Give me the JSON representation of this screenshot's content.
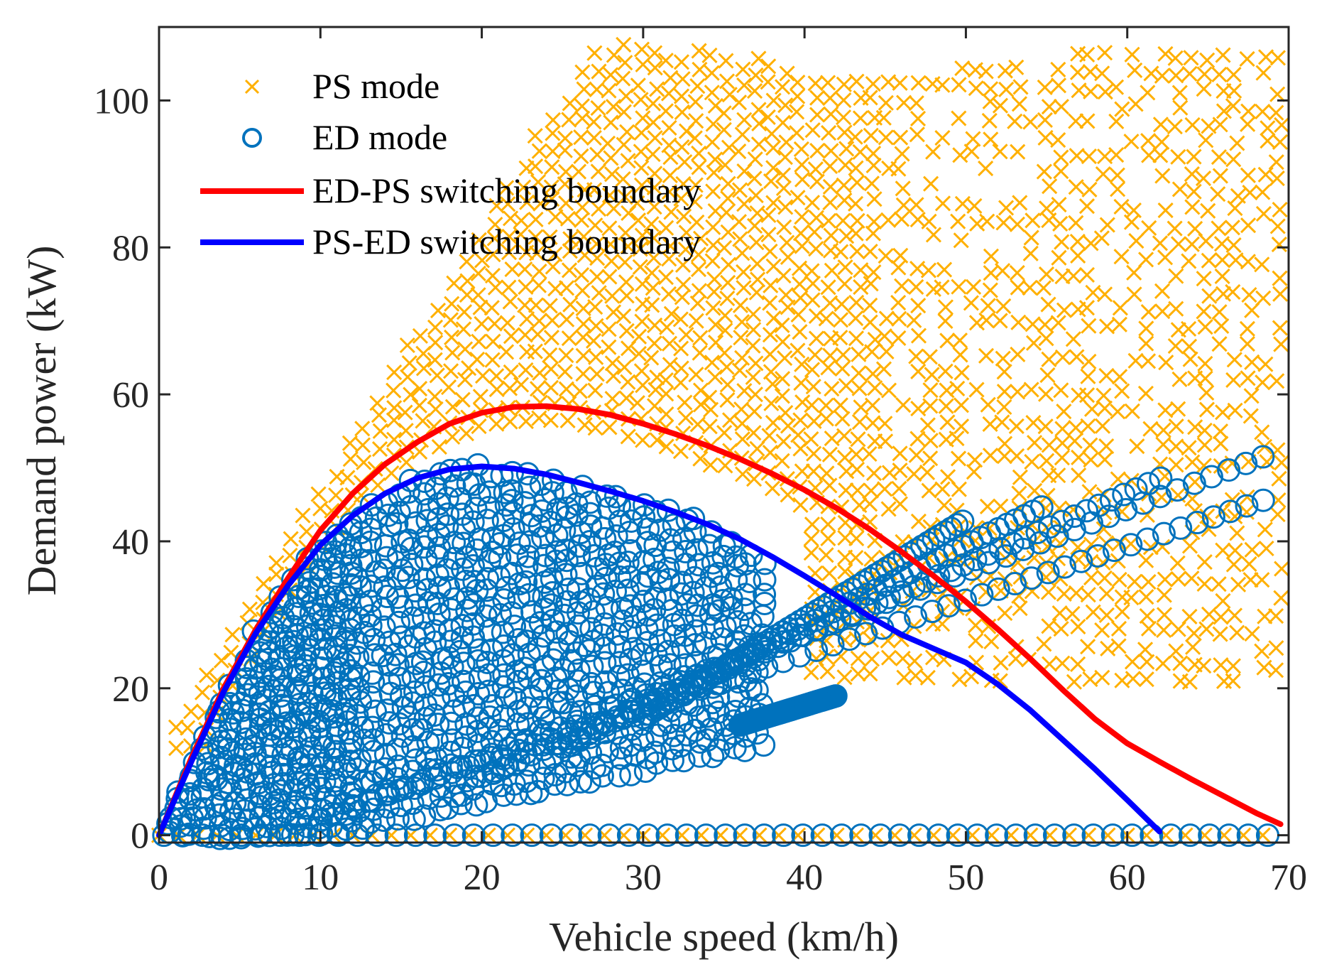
{
  "chart_data": {
    "type": "scatter",
    "xlabel": "Vehicle speed (km/h)",
    "ylabel": "Demand power (kW)",
    "xlim": [
      0,
      70
    ],
    "ylim": [
      -1,
      110
    ],
    "x_ticks": [
      0,
      10,
      20,
      30,
      40,
      50,
      60,
      70
    ],
    "y_ticks": [
      0,
      20,
      40,
      60,
      80,
      100
    ],
    "grid": false,
    "legend_position": "top-left",
    "series": [
      {
        "name": "PS mode",
        "kind": "scatter",
        "marker": "x",
        "color": "#FFB000",
        "description_region": "operating points above ED-PS boundary, speeds 0-70 km/h, power up to ~108 kW, plus points along 0 kW"
      },
      {
        "name": "ED mode",
        "kind": "scatter",
        "marker": "o",
        "color": "#0072BD",
        "description_region": "operating points below switching boundaries, speeds 0-70 km/h, power 0-54 kW, dense at low speed, plus points along 0 kW"
      },
      {
        "name": "ED-PS switching boundary",
        "kind": "line",
        "color": "#FF0000",
        "x": [
          0,
          2,
          4,
          6,
          8,
          10,
          12,
          14,
          16,
          18,
          20,
          22,
          24,
          26,
          28,
          30,
          32,
          34,
          36,
          38,
          40,
          42,
          44,
          46,
          48,
          50,
          52,
          54,
          56,
          58,
          60,
          62,
          64,
          66,
          68,
          69.5
        ],
        "y": [
          0,
          10.5,
          20,
          28,
          35,
          41.5,
          46.5,
          50.5,
          53.5,
          56,
          57.5,
          58.3,
          58.4,
          58,
          57.2,
          56,
          54.6,
          53,
          51.2,
          49.2,
          47,
          44.5,
          41.7,
          38.6,
          35.3,
          31.8,
          28,
          24,
          19.8,
          15.8,
          12.5,
          10,
          7.6,
          5.3,
          3,
          1.5
        ]
      },
      {
        "name": "PS-ED switching boundary",
        "kind": "line",
        "color": "#0000FF",
        "x": [
          0,
          2,
          4,
          6,
          8,
          10,
          12,
          14,
          16,
          18,
          20,
          22,
          24,
          26,
          28,
          30,
          32,
          34,
          36,
          38,
          40,
          42,
          44,
          46,
          48,
          50,
          52,
          54,
          56,
          58,
          60,
          62
        ],
        "y": [
          0,
          10,
          19.5,
          27.5,
          34,
          39.5,
          43.5,
          46.5,
          48.6,
          49.8,
          50.2,
          49.9,
          49.1,
          48,
          46.8,
          45.5,
          44,
          42.3,
          40.3,
          37.9,
          35.3,
          32.6,
          29.8,
          27.3,
          25.4,
          23.5,
          20.5,
          17,
          13,
          9,
          4.8,
          0.5
        ]
      }
    ]
  }
}
